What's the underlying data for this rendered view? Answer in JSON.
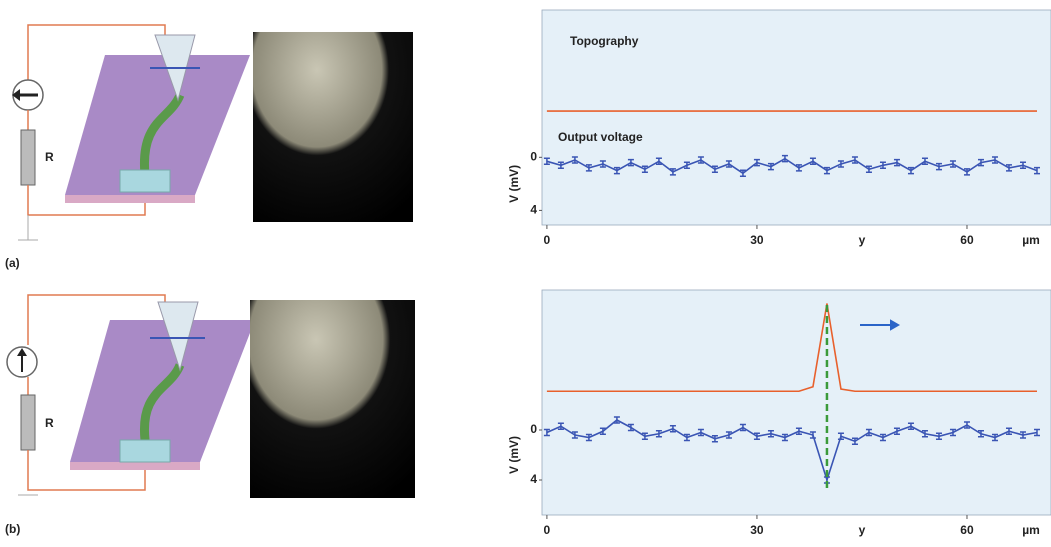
{
  "panels": [
    {
      "label": "(a)",
      "resistor": "R"
    },
    {
      "label": "(b)",
      "resistor": "R"
    }
  ],
  "chart_data": [
    {
      "type": "line",
      "annotations": [
        "Topography",
        "Output voltage"
      ],
      "xlabel": "y",
      "xunit": "µm",
      "ylabel": "V (mV)",
      "x": [
        0,
        2,
        4,
        6,
        8,
        10,
        12,
        14,
        16,
        18,
        20,
        22,
        24,
        26,
        28,
        30,
        32,
        34,
        36,
        38,
        40,
        42,
        44,
        46,
        48,
        50,
        52,
        54,
        56,
        58,
        60,
        62,
        64,
        66,
        68,
        70
      ],
      "xlim": [
        -0.7,
        72
      ],
      "xticks": [
        0,
        30,
        60
      ],
      "ylim": [
        5.1,
        -11.1
      ],
      "yticks": [
        0,
        4
      ],
      "y2lim": [
        0,
        10
      ],
      "series": [
        {
          "color": "#3a55b4",
          "values": [
            0.3,
            0.6,
            0.2,
            0.8,
            0.5,
            1.0,
            0.4,
            0.9,
            0.3,
            1.1,
            0.6,
            0.2,
            0.9,
            0.5,
            1.2,
            0.4,
            0.7,
            0.1,
            0.8,
            0.3,
            1.0,
            0.5,
            0.2,
            0.9,
            0.6,
            0.4,
            1.0,
            0.3,
            0.7,
            0.5,
            1.1,
            0.4,
            0.2,
            0.8,
            0.6,
            1.0
          ]
        },
        {
          "color": "#e8602c",
          "axis": "y2",
          "values": [
            5.3,
            5.3,
            5.3,
            5.3,
            5.3,
            5.3,
            5.3,
            5.3,
            5.3,
            5.3,
            5.3,
            5.3,
            5.3,
            5.3,
            5.3,
            5.3,
            5.3,
            5.3,
            5.3,
            5.3,
            5.3,
            5.3,
            5.3,
            5.3,
            5.3,
            5.3,
            5.3,
            5.3,
            5.3,
            5.3,
            5.3,
            5.3,
            5.3,
            5.3,
            5.3,
            5.3
          ]
        }
      ]
    },
    {
      "type": "line",
      "xlabel": "y",
      "xunit": "µm",
      "ylabel": "V (mV)",
      "x": [
        0,
        2,
        4,
        6,
        8,
        10,
        12,
        14,
        16,
        18,
        20,
        22,
        24,
        26,
        28,
        30,
        32,
        34,
        36,
        38,
        40,
        42,
        44,
        46,
        48,
        50,
        52,
        54,
        56,
        58,
        60,
        62,
        64,
        66,
        68,
        70
      ],
      "xlim": [
        -0.7,
        72
      ],
      "xticks": [
        0,
        30,
        60
      ],
      "ylim": [
        6.8,
        -11.2
      ],
      "yticks": [
        0,
        4
      ],
      "y2lim": [
        0,
        10
      ],
      "series": [
        {
          "color": "#3a55b4",
          "values": [
            0.2,
            -0.3,
            0.4,
            0.6,
            0.1,
            -0.8,
            -0.2,
            0.5,
            0.3,
            -0.1,
            0.6,
            0.2,
            0.7,
            0.4,
            -0.2,
            0.5,
            0.3,
            0.6,
            0.1,
            0.4,
            4.0,
            0.5,
            0.9,
            0.2,
            0.6,
            0.1,
            -0.3,
            0.3,
            0.5,
            0.2,
            -0.4,
            0.3,
            0.6,
            0.1,
            0.4,
            0.2
          ]
        },
        {
          "color": "#e8602c",
          "axis": "y2",
          "values": [
            5.5,
            5.5,
            5.5,
            5.5,
            5.5,
            5.5,
            5.5,
            5.5,
            5.5,
            5.5,
            5.5,
            5.5,
            5.5,
            5.5,
            5.5,
            5.5,
            5.5,
            5.5,
            5.5,
            5.7,
            9.4,
            5.6,
            5.5,
            5.5,
            5.5,
            5.5,
            5.5,
            5.5,
            5.5,
            5.5,
            5.5,
            5.5,
            5.5,
            5.5,
            5.5,
            5.5
          ]
        }
      ]
    }
  ]
}
